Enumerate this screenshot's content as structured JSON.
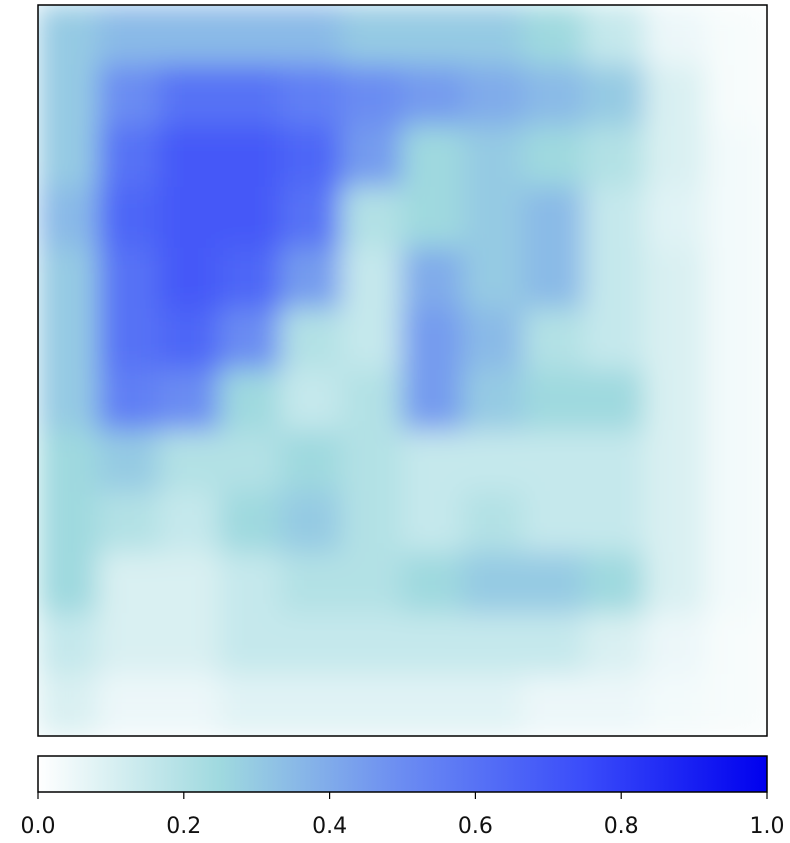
{
  "chart_data": {
    "type": "heatmap",
    "values": [
      [
        0.3,
        0.35,
        0.35,
        0.35,
        0.35,
        0.3,
        0.3,
        0.3,
        0.25,
        0.15,
        0.05,
        0.02
      ],
      [
        0.3,
        0.5,
        0.6,
        0.6,
        0.55,
        0.5,
        0.45,
        0.4,
        0.35,
        0.3,
        0.1,
        0.02
      ],
      [
        0.3,
        0.6,
        0.7,
        0.7,
        0.65,
        0.45,
        0.25,
        0.3,
        0.25,
        0.2,
        0.1,
        0.03
      ],
      [
        0.35,
        0.65,
        0.7,
        0.7,
        0.6,
        0.2,
        0.25,
        0.3,
        0.35,
        0.15,
        0.08,
        0.03
      ],
      [
        0.3,
        0.6,
        0.7,
        0.65,
        0.45,
        0.15,
        0.4,
        0.3,
        0.35,
        0.15,
        0.1,
        0.03
      ],
      [
        0.3,
        0.6,
        0.65,
        0.5,
        0.2,
        0.15,
        0.45,
        0.35,
        0.2,
        0.15,
        0.1,
        0.03
      ],
      [
        0.3,
        0.55,
        0.5,
        0.25,
        0.15,
        0.2,
        0.45,
        0.3,
        0.25,
        0.25,
        0.1,
        0.03
      ],
      [
        0.25,
        0.3,
        0.2,
        0.2,
        0.25,
        0.2,
        0.15,
        0.15,
        0.15,
        0.15,
        0.1,
        0.03
      ],
      [
        0.25,
        0.2,
        0.15,
        0.25,
        0.3,
        0.2,
        0.15,
        0.2,
        0.15,
        0.15,
        0.1,
        0.03
      ],
      [
        0.25,
        0.1,
        0.1,
        0.15,
        0.2,
        0.2,
        0.25,
        0.3,
        0.3,
        0.25,
        0.1,
        0.03
      ],
      [
        0.15,
        0.1,
        0.1,
        0.15,
        0.15,
        0.15,
        0.15,
        0.15,
        0.15,
        0.1,
        0.05,
        0.02
      ],
      [
        0.1,
        0.05,
        0.05,
        0.08,
        0.08,
        0.08,
        0.08,
        0.08,
        0.05,
        0.05,
        0.03,
        0.02
      ]
    ],
    "colormap": [
      "#ffffff",
      "#9fd9df",
      "#6b8cf2",
      "#3a4cfa",
      "#0000ee"
    ],
    "clim": [
      0,
      1
    ],
    "cticks": [
      {
        "value": 0,
        "label": "0.0"
      },
      {
        "value": 0.2,
        "label": "0.2"
      },
      {
        "value": 0.4,
        "label": "0.4"
      },
      {
        "value": 0.6,
        "label": "0.6"
      },
      {
        "value": 0.8,
        "label": "0.8"
      },
      {
        "value": 1,
        "label": "1.0"
      }
    ]
  }
}
